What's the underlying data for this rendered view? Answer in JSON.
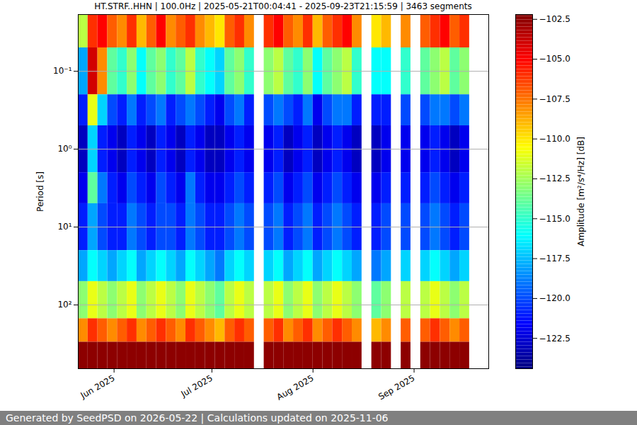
{
  "chart_data": {
    "type": "heatmap",
    "title": "HT.STRF..HHN | 100.0Hz | 2025-05-21T00:04:41 - 2025-09-23T21:15:59 | 3463 segments",
    "ylabel": "Period [s]",
    "log": "y",
    "grid": "y",
    "xlim": [
      "2025-05-21T00:04:41Z",
      "2025-09-23T21:15:59Z"
    ],
    "xticks": [
      {
        "value": "2025-06-01",
        "label": "Jun 2025"
      },
      {
        "value": "2025-07-01",
        "label": "Jul 2025"
      },
      {
        "value": "2025-08-01",
        "label": "Aug 2025"
      },
      {
        "value": "2025-09-01",
        "label": "Sep 2025"
      }
    ],
    "ylim": [
      0.0187,
      658
    ],
    "yticks": [
      {
        "value": 0.1,
        "label": "10⁻¹"
      },
      {
        "value": 1,
        "label": "10⁰"
      },
      {
        "value": 10,
        "label": "10¹"
      },
      {
        "value": 100,
        "label": "10²"
      }
    ],
    "cells": {
      "x_edges": [
        "2025-05-21",
        "2025-05-24",
        "2025-05-27",
        "2025-05-30",
        "2025-06-02",
        "2025-06-05",
        "2025-06-08",
        "2025-06-11",
        "2025-06-14",
        "2025-06-17",
        "2025-06-20",
        "2025-06-23",
        "2025-06-26",
        "2025-06-29",
        "2025-07-02",
        "2025-07-05",
        "2025-07-08",
        "2025-07-11",
        "2025-07-14",
        "2025-07-17",
        "2025-07-20",
        "2025-07-23",
        "2025-07-26",
        "2025-07-29",
        "2025-08-01",
        "2025-08-04",
        "2025-08-07",
        "2025-08-10",
        "2025-08-13",
        "2025-08-16",
        "2025-08-19",
        "2025-08-22",
        "2025-08-25",
        "2025-08-28",
        "2025-08-31",
        "2025-09-03",
        "2025-09-06",
        "2025-09-09",
        "2025-09-12",
        "2025-09-15",
        "2025-09-18",
        "2025-09-21",
        "2025-09-24"
      ],
      "y_edges": [
        0.0187,
        0.05,
        0.2,
        0.5,
        2,
        5,
        20,
        50,
        150,
        300,
        658
      ],
      "values": [
        [
          -112,
          -106,
          -105,
          -107,
          -108,
          -106,
          -109,
          -107,
          -105,
          -108,
          -107,
          -106,
          -108,
          -109,
          -110,
          -107,
          -106,
          -108,
          null,
          -106,
          -105,
          -107,
          -108,
          -106,
          -109,
          -107,
          -106,
          -105,
          -108,
          null,
          -110,
          -109,
          null,
          -108,
          null,
          -107,
          -106,
          -105,
          -107,
          -106,
          null,
          null
        ],
        [
          -118,
          -104,
          -108,
          -114,
          -115,
          -113,
          -116,
          -114,
          -113,
          -115,
          -114,
          -112,
          -115,
          -116,
          -117,
          -114,
          -113,
          -115,
          null,
          -113,
          -112,
          -114,
          -115,
          -113,
          -116,
          -114,
          -113,
          -112,
          -115,
          null,
          -116,
          -116,
          null,
          -115,
          null,
          -114,
          -113,
          -112,
          -114,
          -113,
          null,
          null
        ],
        [
          -121,
          -111,
          -117,
          -120,
          -121,
          -119,
          -121,
          -120,
          -119,
          -121,
          -120,
          -119,
          -120,
          -121,
          -122,
          -120,
          -119,
          -121,
          null,
          -120,
          -119,
          -120,
          -121,
          -119,
          -122,
          -120,
          -119,
          -119,
          -121,
          null,
          -121,
          -121,
          null,
          -120,
          null,
          -120,
          -119,
          -119,
          -120,
          -119,
          null,
          null
        ],
        [
          -123,
          -117,
          -121,
          -122,
          -123,
          -121,
          -122,
          -123,
          -121,
          -122,
          -123,
          -121,
          -122,
          -123,
          -123,
          -122,
          -121,
          -122,
          null,
          -122,
          -121,
          -123,
          -122,
          -121,
          -123,
          -122,
          -121,
          -122,
          -123,
          null,
          -123,
          -122,
          null,
          -122,
          null,
          -122,
          -121,
          -122,
          -123,
          -122,
          null,
          null
        ],
        [
          -122,
          -114,
          -119,
          -121,
          -122,
          -120,
          -121,
          -122,
          -120,
          -121,
          -122,
          -119,
          -121,
          -122,
          -122,
          -121,
          -120,
          -121,
          null,
          -121,
          -120,
          -122,
          -121,
          -120,
          -122,
          -121,
          -120,
          -121,
          -122,
          null,
          -122,
          -121,
          null,
          -121,
          null,
          -121,
          -120,
          -121,
          -122,
          -121,
          null,
          null
        ],
        [
          -121,
          -118,
          -120,
          -121,
          -121,
          -119,
          -120,
          -121,
          -120,
          -120,
          -121,
          -119,
          -120,
          -121,
          -121,
          -120,
          -119,
          -120,
          null,
          -120,
          -119,
          -121,
          -120,
          -119,
          -121,
          -120,
          -119,
          -120,
          -121,
          null,
          -121,
          -120,
          null,
          -120,
          null,
          -120,
          -119,
          -120,
          -121,
          -120,
          null,
          null
        ],
        [
          -118,
          -116,
          -117,
          -118,
          -117,
          -116,
          -118,
          -117,
          -116,
          -117,
          -118,
          -116,
          -117,
          -118,
          -119,
          -117,
          -116,
          -117,
          null,
          -117,
          -116,
          -118,
          -117,
          -116,
          -118,
          -117,
          -116,
          -117,
          -118,
          null,
          -119,
          -118,
          null,
          -117,
          null,
          -117,
          -116,
          -117,
          -118,
          -117,
          null,
          null
        ],
        [
          -113,
          -111,
          -112,
          -113,
          -112,
          -111,
          -113,
          -112,
          -111,
          -112,
          -113,
          -111,
          -112,
          -113,
          -114,
          -112,
          -111,
          -112,
          null,
          -112,
          -111,
          -113,
          -112,
          -111,
          -113,
          -112,
          -111,
          -112,
          -113,
          null,
          -114,
          -113,
          null,
          -112,
          null,
          -112,
          -111,
          -112,
          -113,
          -112,
          null,
          null
        ],
        [
          -108,
          -106,
          -107,
          -108,
          -107,
          -106,
          -108,
          -107,
          -106,
          -107,
          -108,
          -106,
          -107,
          -108,
          -109,
          -107,
          -106,
          -107,
          null,
          -107,
          -106,
          -108,
          -107,
          -106,
          -108,
          -107,
          -106,
          -107,
          -108,
          null,
          -109,
          -108,
          null,
          -107,
          null,
          -107,
          -106,
          -107,
          -108,
          -107,
          null,
          null
        ],
        [
          -102.5,
          -102.5,
          -102.5,
          -102.5,
          -102.5,
          -102.5,
          -102.5,
          -102.5,
          -102.5,
          -102.5,
          -102.5,
          -102.5,
          -102.5,
          -102.5,
          -102.5,
          -102.5,
          -102.5,
          -102.5,
          null,
          -102.5,
          -102.5,
          -102.5,
          -102.5,
          -102.5,
          -102.5,
          -102.5,
          -102.5,
          -102.5,
          -102.5,
          null,
          -102.5,
          -102.5,
          null,
          -102.5,
          null,
          -102.5,
          -102.5,
          -102.5,
          -102.5,
          -102.5,
          null,
          null
        ]
      ]
    },
    "colorbar": {
      "label": "Amplitude [m²/s⁴/Hz] [dB]",
      "range": [
        -124.4,
        -102.2
      ],
      "ticks": [
        {
          "value": -102.5,
          "label": "−102.5"
        },
        {
          "value": -105,
          "label": "−105.0"
        },
        {
          "value": -107.5,
          "label": "−107.5"
        },
        {
          "value": -110,
          "label": "−110.0"
        },
        {
          "value": -112.5,
          "label": "−112.5"
        },
        {
          "value": -115,
          "label": "−115.0"
        },
        {
          "value": -117.5,
          "label": "−117.5"
        },
        {
          "value": -120,
          "label": "−120.0"
        },
        {
          "value": -122.5,
          "label": "−122.5"
        }
      ]
    },
    "caption": "Generated by SeedPSD on 2026-05-22 | Calculations updated on 2025-11-06"
  }
}
